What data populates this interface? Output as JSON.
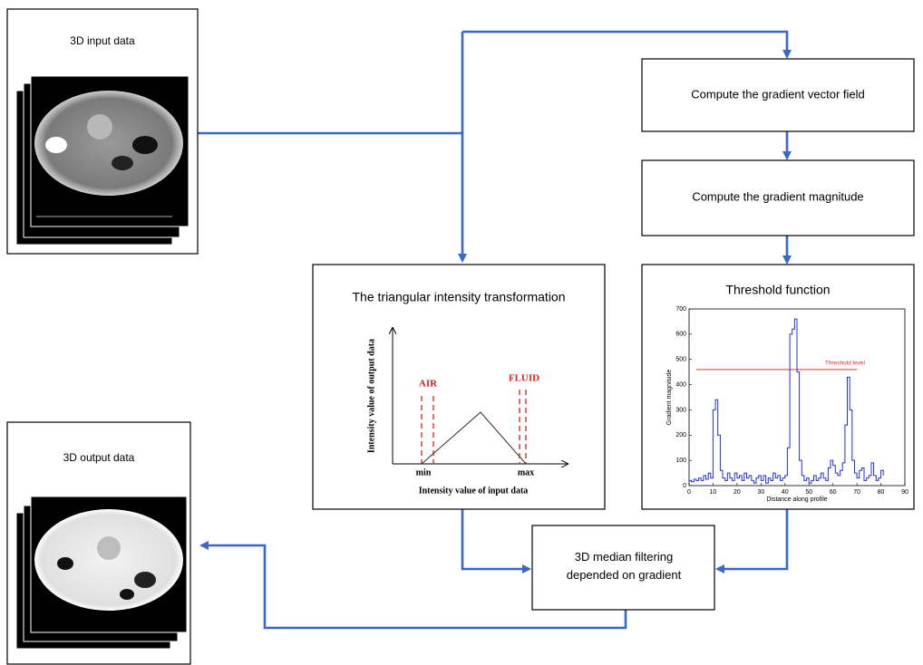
{
  "nodes": [
    {
      "label": "3D input data"
    },
    {
      "label": "Compute the gradient vector field"
    },
    {
      "label": "Compute the gradient magnitude"
    },
    {
      "label": "The triangular intensity transformation"
    },
    {
      "label": "Threshold function"
    },
    {
      "label": "3D output data"
    },
    {
      "label": "3D median filtering\ndepended on gradient"
    }
  ],
  "transform_plot": {
    "xlabel": "Intensity value of input data",
    "ylabel": "Intensity value of output data",
    "low_label": "AIR",
    "high_label": "FLUID",
    "min_label": "min",
    "max_label": "max"
  },
  "threshold_plot": {
    "type": "line",
    "xlabel": "Distance along profile",
    "ylabel": "Gradient magnitude",
    "xlim": [
      0,
      90
    ],
    "ylim": [
      0,
      700
    ],
    "xticks": [
      0,
      10,
      20,
      30,
      40,
      50,
      60,
      70,
      80,
      90
    ],
    "yticks": [
      0,
      100,
      200,
      300,
      400,
      500,
      600,
      700
    ],
    "color": "#2030e0",
    "threshold": {
      "value": 460,
      "label": "Threshold level",
      "color": "#e03030"
    },
    "x": [
      0,
      1,
      2,
      3,
      4,
      5,
      6,
      7,
      8,
      9,
      10,
      11,
      12,
      13,
      14,
      15,
      16,
      17,
      18,
      19,
      20,
      21,
      22,
      23,
      24,
      25,
      26,
      27,
      28,
      29,
      30,
      31,
      32,
      33,
      34,
      35,
      36,
      37,
      38,
      39,
      40,
      41,
      42,
      43,
      44,
      45,
      46,
      47,
      48,
      49,
      50,
      51,
      52,
      53,
      54,
      55,
      56,
      57,
      58,
      59,
      60,
      61,
      62,
      63,
      64,
      65,
      66,
      67,
      68,
      69,
      70,
      71,
      72,
      73,
      74,
      75,
      76,
      77,
      78,
      79,
      80,
      81
    ],
    "values": [
      20,
      15,
      25,
      20,
      30,
      20,
      40,
      25,
      50,
      30,
      300,
      340,
      200,
      60,
      30,
      20,
      50,
      30,
      20,
      50,
      30,
      40,
      20,
      50,
      30,
      40,
      20,
      10,
      30,
      40,
      20,
      40,
      10,
      30,
      20,
      50,
      30,
      40,
      20,
      30,
      40,
      150,
      600,
      620,
      660,
      450,
      100,
      40,
      20,
      30,
      10,
      20,
      40,
      20,
      30,
      50,
      30,
      20,
      70,
      100,
      80,
      50,
      40,
      60,
      90,
      240,
      430,
      300,
      100,
      50,
      30,
      60,
      70,
      20,
      30,
      40,
      90,
      40,
      20,
      30,
      60,
      40
    ]
  }
}
